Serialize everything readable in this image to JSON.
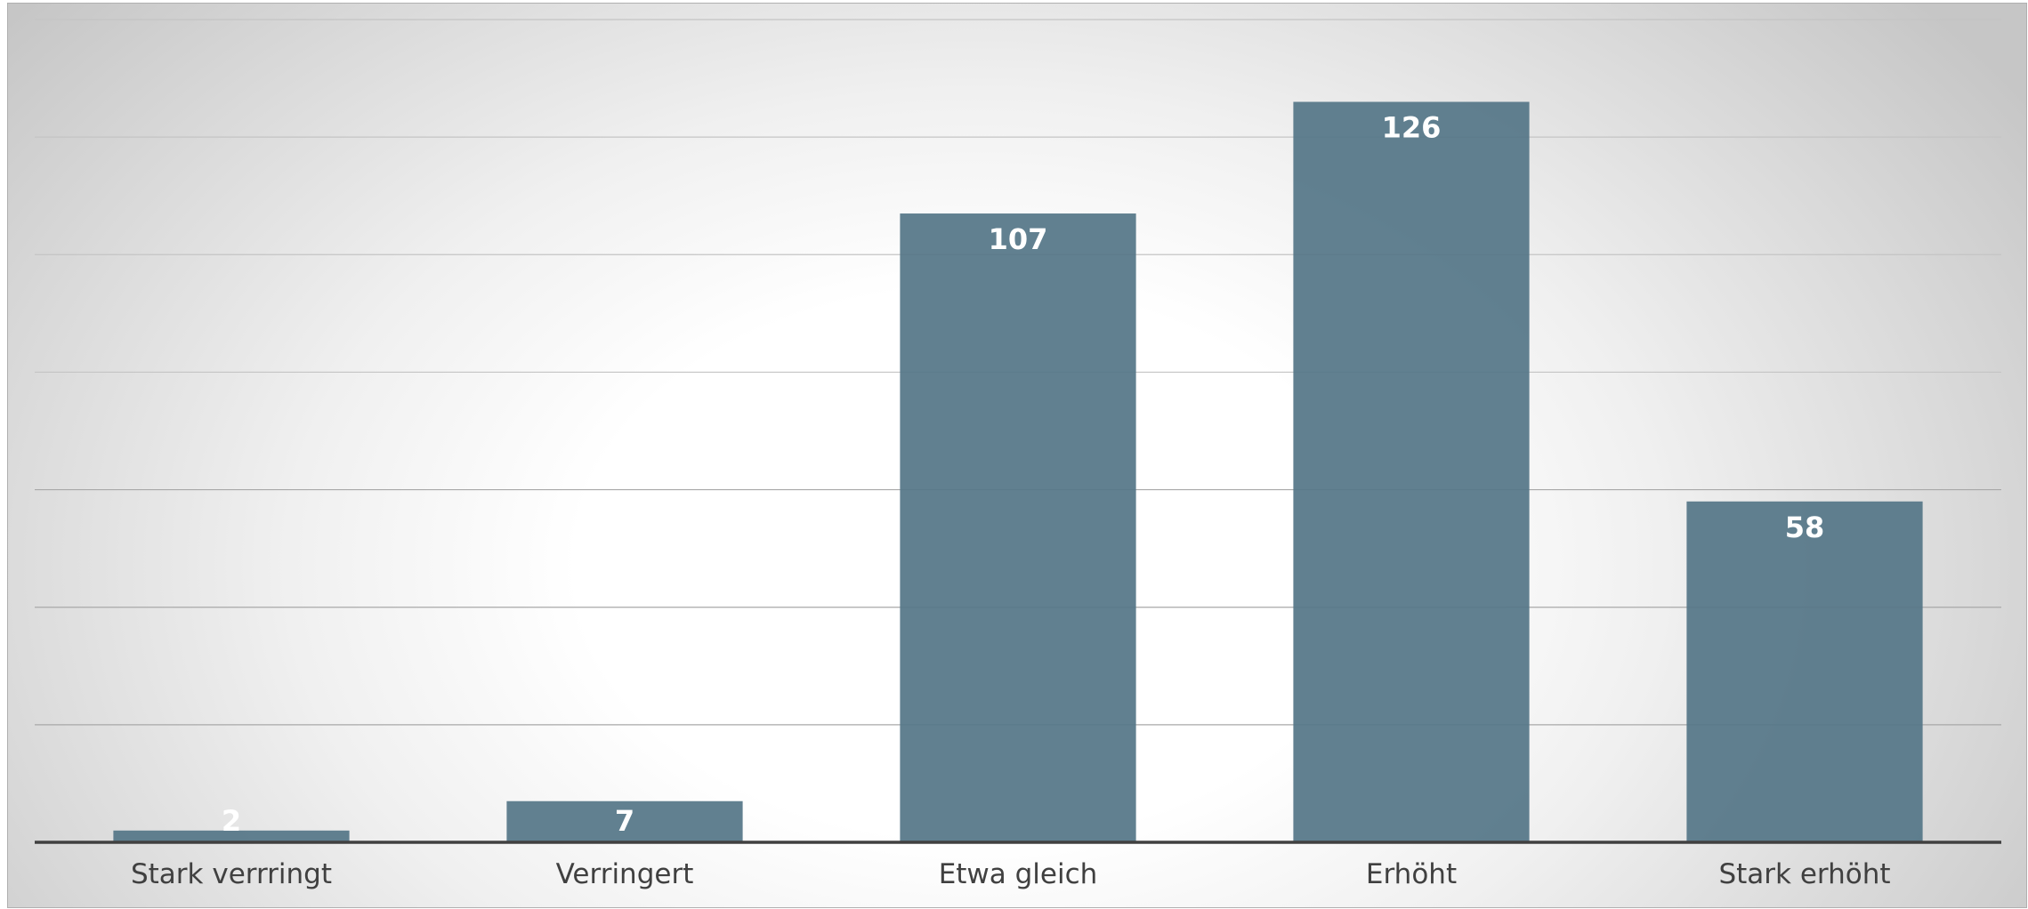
{
  "chart_data": {
    "type": "bar",
    "categories": [
      "Stark verrringt",
      "Verringert",
      "Etwa gleich",
      "Erhöht",
      "Stark erhöht"
    ],
    "values": [
      2,
      7,
      107,
      126,
      58
    ],
    "title": "",
    "xlabel": "",
    "ylabel": "",
    "ylim": [
      0,
      140
    ],
    "grid": true,
    "legend": "none",
    "bar_color": "#557688",
    "label_color": "#ffffff"
  }
}
